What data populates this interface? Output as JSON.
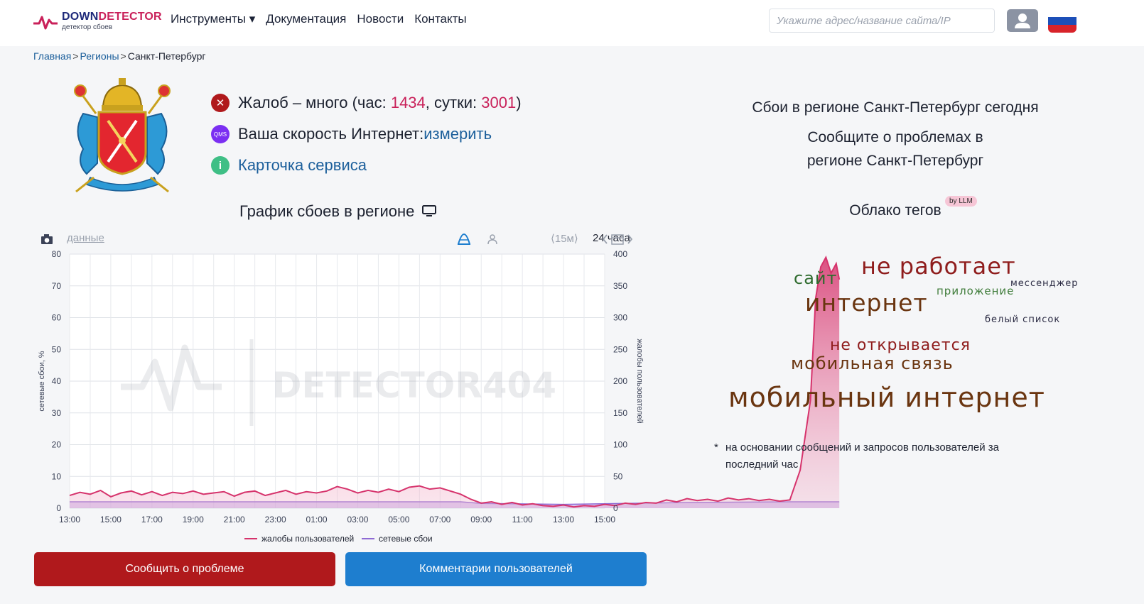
{
  "header": {
    "logo_name_a": "DOWN",
    "logo_name_b": "DETECTOR",
    "logo_sub": "детектор сбоев",
    "nav": [
      "Инструменты ▾",
      "Документация",
      "Новости",
      "Контакты"
    ],
    "search_placeholder": "Укажите адрес/название сайта/IP",
    "flag_colors": [
      "#ffffff",
      "#1d4fb8",
      "#d8232a"
    ]
  },
  "breadcrumb": {
    "items": [
      "Главная",
      "Регионы"
    ],
    "current": "Санкт-Петербург",
    "separator": ">"
  },
  "stats": {
    "complaints_prefix": "Жалоб – много (час: ",
    "hour": "1434",
    "day_prefix": ", сутки: ",
    "day": "3001",
    "complaints_suffix": ")",
    "speed_label": "Ваша скорость Интернет: ",
    "speed_link": "измерить",
    "speed_icon": "QMS",
    "card_link": "Карточка сервиса",
    "card_icon": "i",
    "status_icon": "✕"
  },
  "chart_section": {
    "title": "График сбоев в регионе",
    "data_link": "данные",
    "period": "⟨15м⟩",
    "range": "24 часа",
    "watermark": "DETECTOR404"
  },
  "chart_data": {
    "type": "area",
    "x": [
      "13:00",
      "15:00",
      "17:00",
      "19:00",
      "21:00",
      "23:00",
      "01:00",
      "03:00",
      "05:00",
      "07:00",
      "09:00",
      "11:00",
      "13:00",
      "15:00"
    ],
    "y_left_label": "сетевые сбои, %",
    "y_left_ticks": [
      0,
      10,
      20,
      30,
      40,
      50,
      60,
      70,
      80
    ],
    "y_left_lim": [
      0,
      80
    ],
    "y_right_label": "жалобы пользователей",
    "y_right_ticks": [
      0,
      50,
      100,
      150,
      200,
      250,
      300,
      350,
      400
    ],
    "y_right_lim": [
      0,
      400
    ],
    "series": [
      {
        "name": "жалобы пользователей",
        "axis": "right",
        "color": "#d6336c",
        "points": [
          [
            0,
            20
          ],
          [
            0.5,
            25
          ],
          [
            1,
            22
          ],
          [
            1.5,
            28
          ],
          [
            2,
            18
          ],
          [
            2.5,
            24
          ],
          [
            3,
            27
          ],
          [
            3.5,
            21
          ],
          [
            4,
            26
          ],
          [
            4.5,
            20
          ],
          [
            5,
            25
          ],
          [
            5.5,
            23
          ],
          [
            6,
            27
          ],
          [
            6.5,
            22
          ],
          [
            7,
            24
          ],
          [
            7.5,
            26
          ],
          [
            8,
            19
          ],
          [
            8.5,
            25
          ],
          [
            9,
            27
          ],
          [
            9.5,
            20
          ],
          [
            10,
            24
          ],
          [
            10.5,
            28
          ],
          [
            11,
            22
          ],
          [
            11.5,
            26
          ],
          [
            12,
            24
          ],
          [
            12.5,
            27
          ],
          [
            13,
            34
          ],
          [
            13.5,
            30
          ],
          [
            14,
            24
          ],
          [
            14.5,
            28
          ],
          [
            15,
            25
          ],
          [
            15.5,
            30
          ],
          [
            16,
            26
          ],
          [
            16.5,
            33
          ],
          [
            17,
            35
          ],
          [
            17.5,
            30
          ],
          [
            18,
            32
          ],
          [
            18.5,
            27
          ],
          [
            19,
            22
          ],
          [
            19.5,
            14
          ],
          [
            20,
            8
          ],
          [
            20.5,
            10
          ],
          [
            21,
            6
          ],
          [
            21.5,
            9
          ],
          [
            22,
            5
          ],
          [
            22.5,
            7
          ],
          [
            23,
            4
          ],
          [
            23.5,
            3
          ],
          [
            24,
            5
          ],
          [
            24.5,
            2
          ],
          [
            25,
            4
          ],
          [
            25.5,
            3
          ],
          [
            26,
            6
          ],
          [
            26.5,
            4
          ],
          [
            27,
            8
          ],
          [
            27.5,
            6
          ],
          [
            28,
            9
          ],
          [
            28.5,
            8
          ],
          [
            29,
            13
          ],
          [
            29.5,
            10
          ],
          [
            30,
            15
          ],
          [
            30.5,
            12
          ],
          [
            31,
            14
          ],
          [
            31.5,
            11
          ],
          [
            32,
            16
          ],
          [
            32.5,
            13
          ],
          [
            33,
            15
          ],
          [
            33.5,
            12
          ],
          [
            34,
            14
          ],
          [
            34.5,
            11
          ],
          [
            35,
            13
          ],
          [
            35.5,
            60
          ],
          [
            36,
            170
          ],
          [
            36.25,
            330
          ],
          [
            36.5,
            380
          ],
          [
            36.75,
            395
          ],
          [
            37,
            370
          ],
          [
            37.25,
            385
          ],
          [
            37.4,
            360
          ]
        ]
      },
      {
        "name": "сетевые сбои",
        "axis": "left",
        "color": "#8e6ad4",
        "points": [
          [
            0,
            2
          ],
          [
            10,
            2
          ],
          [
            19,
            2
          ],
          [
            20,
            1.5
          ],
          [
            24,
            1.2
          ],
          [
            27,
            1.5
          ],
          [
            30,
            1.8
          ],
          [
            35,
            2
          ],
          [
            37.4,
            2
          ]
        ]
      }
    ],
    "legend": "bottom",
    "grid": true
  },
  "buttons": {
    "report": "Сообщить о проблеме",
    "comments": "Комментарии пользователей"
  },
  "right": {
    "today_title": "Сбои в регионе Санкт-Петербург сегодня",
    "report_line1": "Сообщите о проблемах в",
    "report_line2": "регионе Санкт-Петербург",
    "cloud_title": "Облако тегов",
    "llm_badge": "by LLM",
    "tags": [
      {
        "text": "не работает",
        "size": 32,
        "color": "#8f1d1d"
      },
      {
        "text": "сайт",
        "size": 24,
        "color": "#2e6b2e"
      },
      {
        "text": "мессенджер",
        "size": 13,
        "color": "#2c2c44"
      },
      {
        "text": "приложение",
        "size": 15,
        "color": "#3f7c3a"
      },
      {
        "text": "интернет",
        "size": 33,
        "color": "#6a3510"
      },
      {
        "text": "белый список",
        "size": 13,
        "color": "#2c2c44"
      },
      {
        "text": "не открывается",
        "size": 22,
        "color": "#8f1d1d"
      },
      {
        "text": "мобильная связь",
        "size": 24,
        "color": "#6a3510"
      },
      {
        "text": "мобильный интернет",
        "size": 38,
        "color": "#6a3510"
      }
    ],
    "footnote_star": "*",
    "footnote": "на основании сообщений и запросов пользователей за последний час"
  }
}
